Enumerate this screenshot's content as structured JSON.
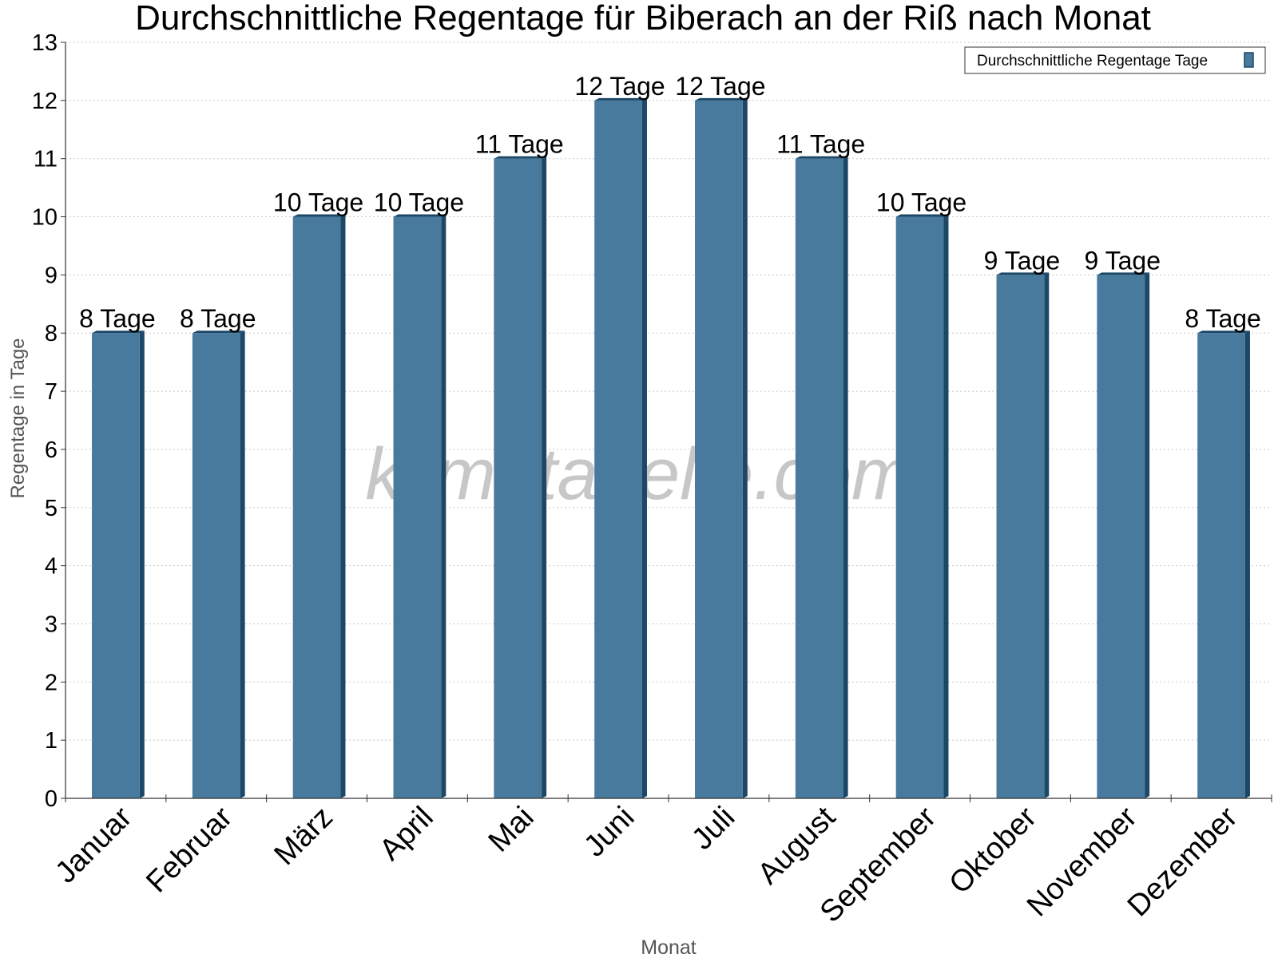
{
  "chart_data": {
    "type": "bar",
    "title": "Durchschnittliche Regentage für Biberach an der Riß nach Monat",
    "xlabel": "Monat",
    "ylabel": "Regentage in Tage",
    "categories": [
      "Januar",
      "Februar",
      "März",
      "April",
      "Mai",
      "Juni",
      "Juli",
      "August",
      "September",
      "Oktober",
      "November",
      "Dezember"
    ],
    "series": [
      {
        "name": "Durchschnittliche Regentage Tage",
        "values": [
          8,
          8,
          10,
          10,
          11,
          12,
          12,
          11,
          10,
          9,
          9,
          8
        ],
        "data_labels": [
          "8 Tage",
          "8 Tage",
          "10 Tage",
          "10 Tage",
          "11 Tage",
          "12 Tage",
          "12 Tage",
          "11 Tage",
          "10 Tage",
          "9 Tage",
          "9 Tage",
          "8 Tage"
        ]
      }
    ],
    "ylim": [
      0,
      13
    ],
    "yticks": [
      0,
      1,
      2,
      3,
      4,
      5,
      6,
      7,
      8,
      9,
      10,
      11,
      12,
      13
    ],
    "grid": true,
    "legend_position": "top-right",
    "colors": {
      "bar_front": "#477a9c",
      "bar_side": "#1c4766",
      "bar_top": "#1c4766",
      "grid": "#c8c8c8",
      "axis": "#333333",
      "watermark": "#bdbdbd"
    }
  },
  "watermark": "klimatabelle.com"
}
